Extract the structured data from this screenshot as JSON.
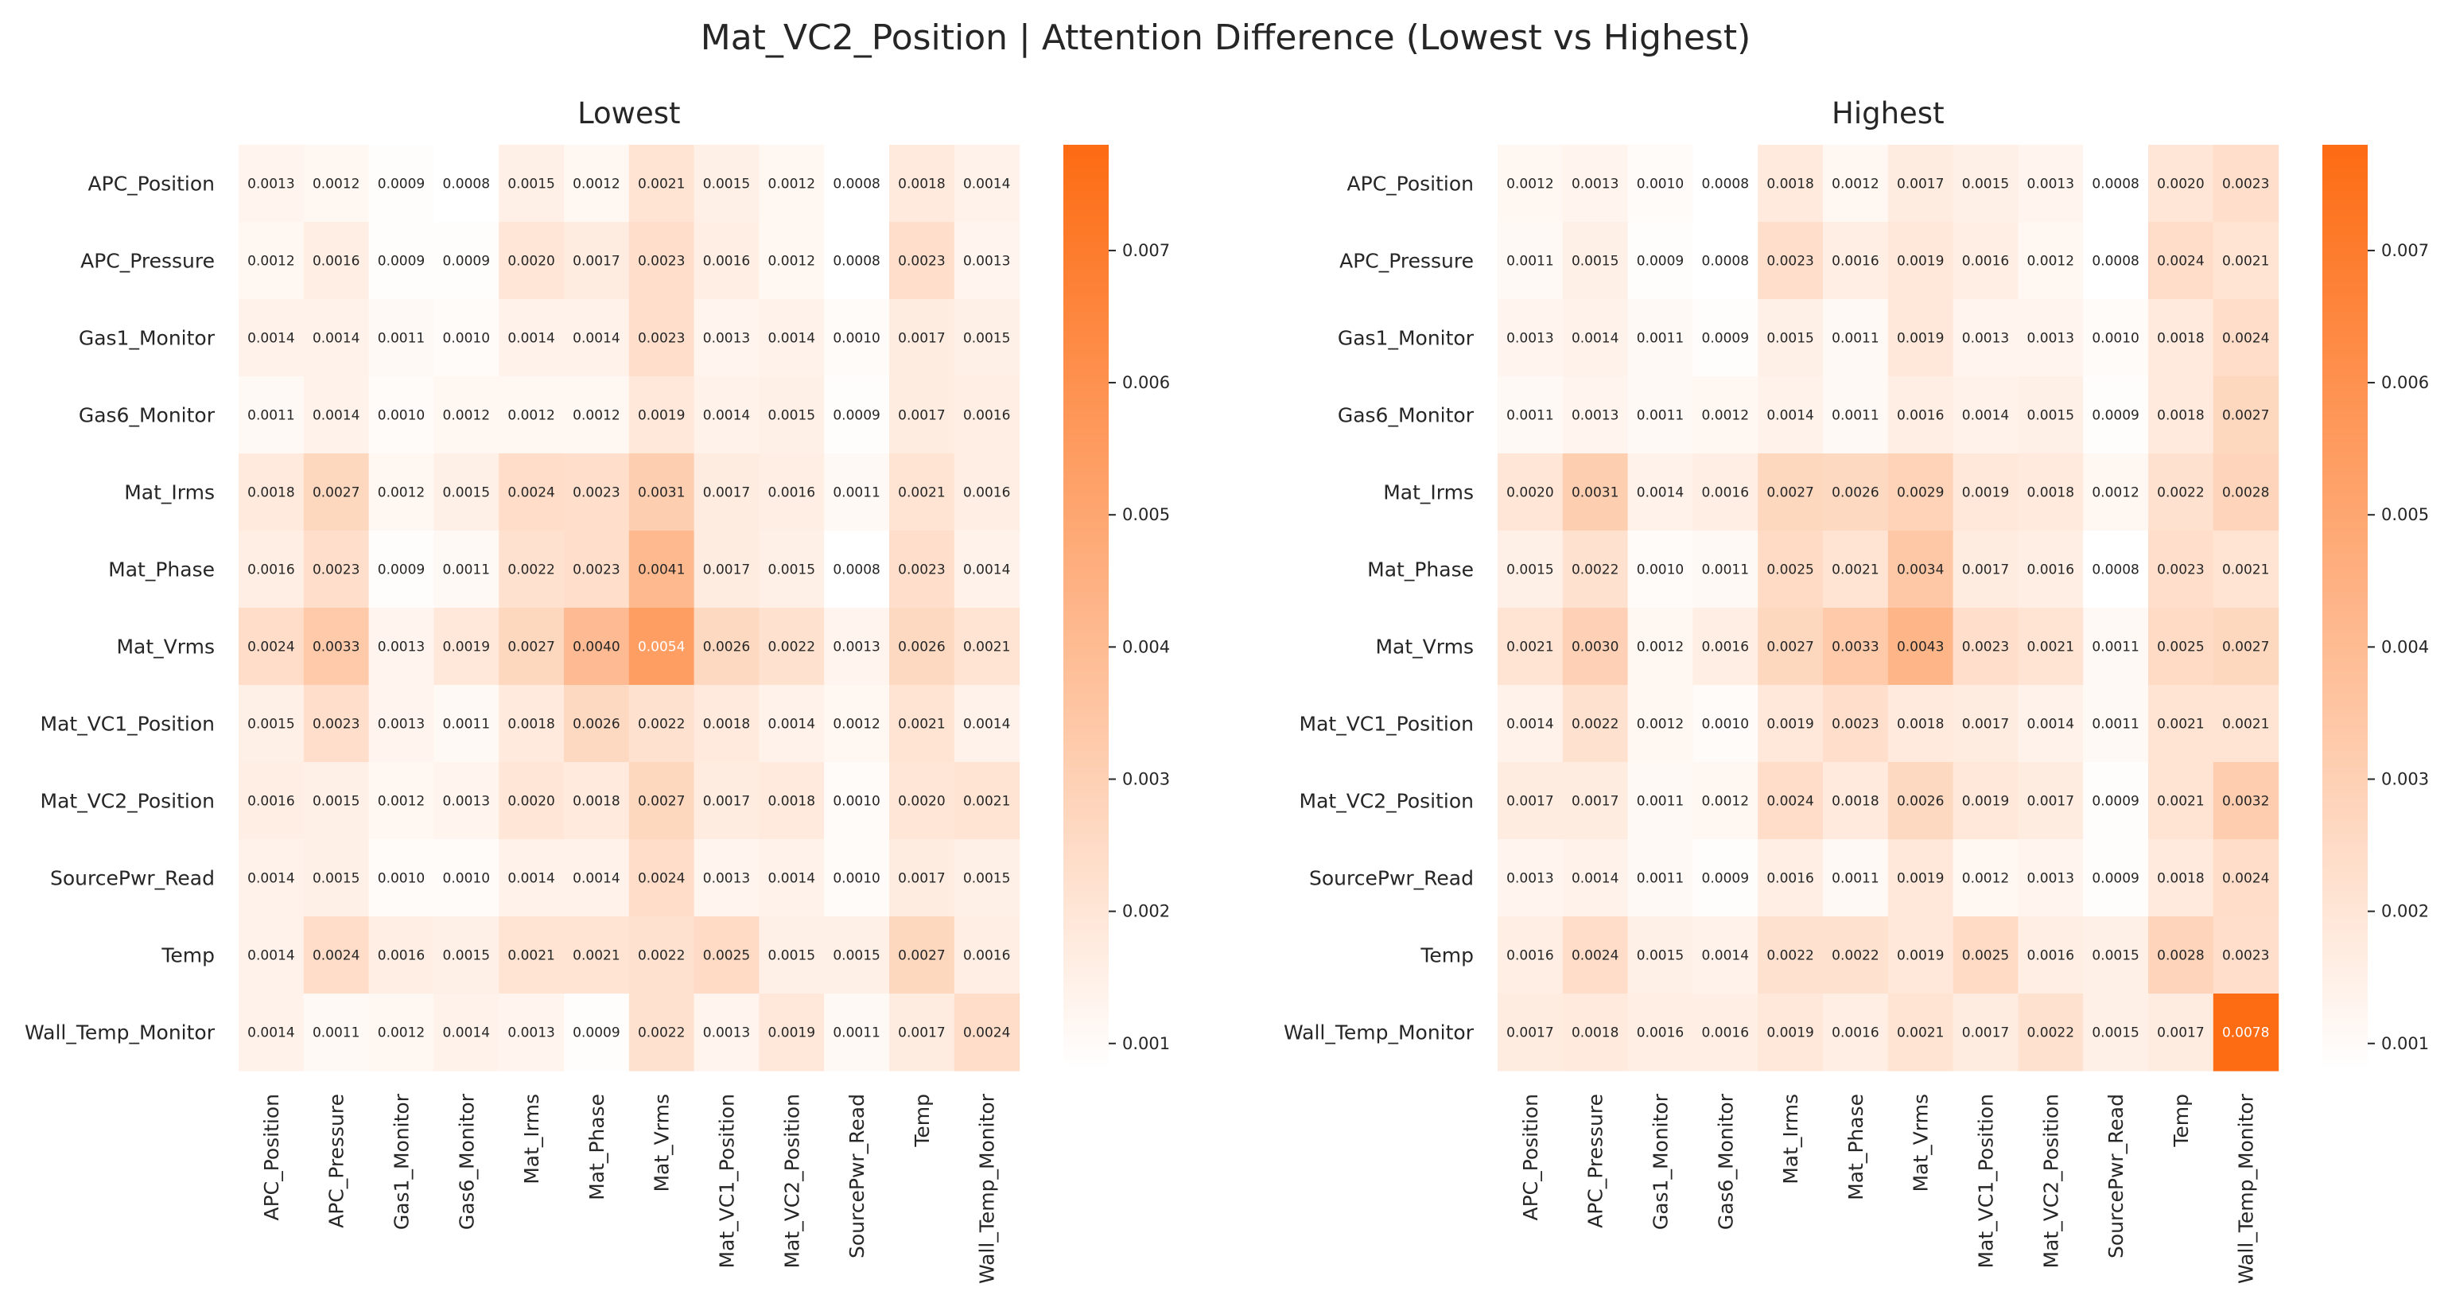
{
  "chart_data": {
    "type": "heatmap",
    "title": "Mat_VC2_Position | Attention Difference (Lowest vs Highest)",
    "row_labels": [
      "APC_Position",
      "APC_Pressure",
      "Gas1_Monitor",
      "Gas6_Monitor",
      "Mat_Irms",
      "Mat_Phase",
      "Mat_Vrms",
      "Mat_VC1_Position",
      "Mat_VC2_Position",
      "SourcePwr_Read",
      "Temp",
      "Wall_Temp_Monitor"
    ],
    "col_labels": [
      "APC_Position",
      "APC_Pressure",
      "Gas1_Monitor",
      "Gas6_Monitor",
      "Mat_Irms",
      "Mat_Phase",
      "Mat_Vrms",
      "Mat_VC1_Position",
      "Mat_VC2_Position",
      "SourcePwr_Read",
      "Temp",
      "Wall_Temp_Monitor"
    ],
    "colorbar": {
      "vmin": 0.0008,
      "vmax": 0.0078,
      "ticks": [
        0.001,
        0.002,
        0.003,
        0.004,
        0.005,
        0.006,
        0.007
      ],
      "tick_labels": [
        "0.001",
        "0.002",
        "0.003",
        "0.004",
        "0.005",
        "0.006",
        "0.007"
      ],
      "colors": [
        "#ffffff",
        "#fd6b12"
      ]
    },
    "panels": [
      {
        "title": "Lowest",
        "values": [
          [
            0.0013,
            0.0012,
            0.0009,
            0.0008,
            0.0015,
            0.0012,
            0.0021,
            0.0015,
            0.0012,
            0.0008,
            0.0018,
            0.0014
          ],
          [
            0.0012,
            0.0016,
            0.0009,
            0.0009,
            0.002,
            0.0017,
            0.0023,
            0.0016,
            0.0012,
            0.0008,
            0.0023,
            0.0013
          ],
          [
            0.0014,
            0.0014,
            0.0011,
            0.001,
            0.0014,
            0.0014,
            0.0023,
            0.0013,
            0.0014,
            0.001,
            0.0017,
            0.0015
          ],
          [
            0.0011,
            0.0014,
            0.001,
            0.0012,
            0.0012,
            0.0012,
            0.0019,
            0.0014,
            0.0015,
            0.0009,
            0.0017,
            0.0016
          ],
          [
            0.0018,
            0.0027,
            0.0012,
            0.0015,
            0.0024,
            0.0023,
            0.0031,
            0.0017,
            0.0016,
            0.0011,
            0.0021,
            0.0016
          ],
          [
            0.0016,
            0.0023,
            0.0009,
            0.0011,
            0.0022,
            0.0023,
            0.0041,
            0.0017,
            0.0015,
            0.0008,
            0.0023,
            0.0014
          ],
          [
            0.0024,
            0.0033,
            0.0013,
            0.0019,
            0.0027,
            0.004,
            0.0054,
            0.0026,
            0.0022,
            0.0013,
            0.0026,
            0.0021
          ],
          [
            0.0015,
            0.0023,
            0.0013,
            0.0011,
            0.0018,
            0.0026,
            0.0022,
            0.0018,
            0.0014,
            0.0012,
            0.0021,
            0.0014
          ],
          [
            0.0016,
            0.0015,
            0.0012,
            0.0013,
            0.002,
            0.0018,
            0.0027,
            0.0017,
            0.0018,
            0.001,
            0.002,
            0.0021
          ],
          [
            0.0014,
            0.0015,
            0.001,
            0.001,
            0.0014,
            0.0014,
            0.0024,
            0.0013,
            0.0014,
            0.001,
            0.0017,
            0.0015
          ],
          [
            0.0014,
            0.0024,
            0.0016,
            0.0015,
            0.0021,
            0.0021,
            0.0022,
            0.0025,
            0.0015,
            0.0015,
            0.0027,
            0.0016
          ],
          [
            0.0014,
            0.0011,
            0.0012,
            0.0014,
            0.0013,
            0.0009,
            0.0022,
            0.0013,
            0.0019,
            0.0011,
            0.0017,
            0.0024
          ]
        ]
      },
      {
        "title": "Highest",
        "values": [
          [
            0.0012,
            0.0013,
            0.001,
            0.0008,
            0.0018,
            0.0012,
            0.0017,
            0.0015,
            0.0013,
            0.0008,
            0.002,
            0.0023
          ],
          [
            0.0011,
            0.0015,
            0.0009,
            0.0008,
            0.0023,
            0.0016,
            0.0019,
            0.0016,
            0.0012,
            0.0008,
            0.0024,
            0.0021
          ],
          [
            0.0013,
            0.0014,
            0.0011,
            0.0009,
            0.0015,
            0.0011,
            0.0019,
            0.0013,
            0.0013,
            0.001,
            0.0018,
            0.0024
          ],
          [
            0.0011,
            0.0013,
            0.0011,
            0.0012,
            0.0014,
            0.0011,
            0.0016,
            0.0014,
            0.0015,
            0.0009,
            0.0018,
            0.0027
          ],
          [
            0.002,
            0.0031,
            0.0014,
            0.0016,
            0.0027,
            0.0026,
            0.0029,
            0.0019,
            0.0018,
            0.0012,
            0.0022,
            0.0028
          ],
          [
            0.0015,
            0.0022,
            0.001,
            0.0011,
            0.0025,
            0.0021,
            0.0034,
            0.0017,
            0.0016,
            0.0008,
            0.0023,
            0.0021
          ],
          [
            0.0021,
            0.003,
            0.0012,
            0.0016,
            0.0027,
            0.0033,
            0.0043,
            0.0023,
            0.0021,
            0.0011,
            0.0025,
            0.0027
          ],
          [
            0.0014,
            0.0022,
            0.0012,
            0.001,
            0.0019,
            0.0023,
            0.0018,
            0.0017,
            0.0014,
            0.0011,
            0.0021,
            0.0021
          ],
          [
            0.0017,
            0.0017,
            0.0011,
            0.0012,
            0.0024,
            0.0018,
            0.0026,
            0.0019,
            0.0017,
            0.0009,
            0.0021,
            0.0032
          ],
          [
            0.0013,
            0.0014,
            0.0011,
            0.0009,
            0.0016,
            0.0011,
            0.0019,
            0.0012,
            0.0013,
            0.0009,
            0.0018,
            0.0024
          ],
          [
            0.0016,
            0.0024,
            0.0015,
            0.0014,
            0.0022,
            0.0022,
            0.0019,
            0.0025,
            0.0016,
            0.0015,
            0.0028,
            0.0023
          ],
          [
            0.0017,
            0.0018,
            0.0016,
            0.0016,
            0.0019,
            0.0016,
            0.0021,
            0.0017,
            0.0022,
            0.0015,
            0.0017,
            0.0078
          ]
        ]
      }
    ]
  }
}
